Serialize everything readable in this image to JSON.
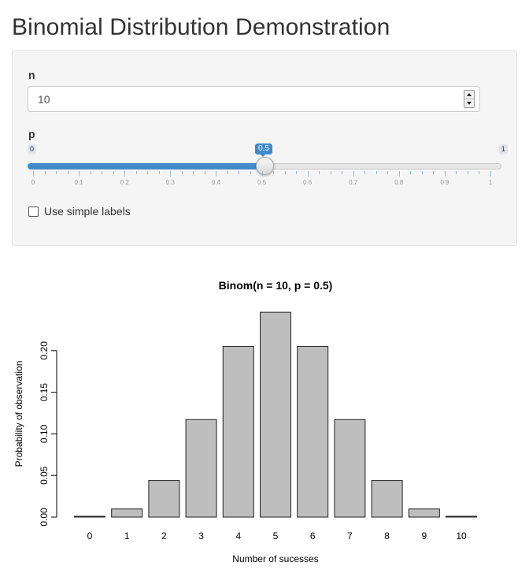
{
  "page": {
    "title": "Binomial Distribution Demonstration"
  },
  "controls": {
    "n": {
      "label": "n",
      "value": "10"
    },
    "p": {
      "label": "p",
      "min_label": "0",
      "max_label": "1",
      "value_label": "0.5",
      "value": 0.5,
      "tick_labels": [
        "0",
        "0.1",
        "0.2",
        "0.3",
        "0.4",
        "0.5",
        "0.6",
        "0.7",
        "0.8",
        "0.9",
        "1"
      ]
    },
    "simple_labels": {
      "label": "Use simple labels",
      "checked": false
    }
  },
  "colors": {
    "accent": "#428bca",
    "bar_fill": "#bebebe",
    "panel_bg": "#f5f5f5"
  },
  "chart_data": {
    "type": "bar",
    "title": "Binom(n = 10, p = 0.5)",
    "xlabel": "Number of sucesses",
    "ylabel": "Probability of observation",
    "categories": [
      "0",
      "1",
      "2",
      "3",
      "4",
      "5",
      "6",
      "7",
      "8",
      "9",
      "10"
    ],
    "values": [
      0.000977,
      0.009766,
      0.043945,
      0.117188,
      0.205078,
      0.246094,
      0.205078,
      0.117188,
      0.043945,
      0.009766,
      0.000977
    ],
    "ylim": [
      0,
      0.25
    ],
    "yticks": [
      "0.00",
      "0.05",
      "0.10",
      "0.15",
      "0.20"
    ],
    "grid": false
  }
}
